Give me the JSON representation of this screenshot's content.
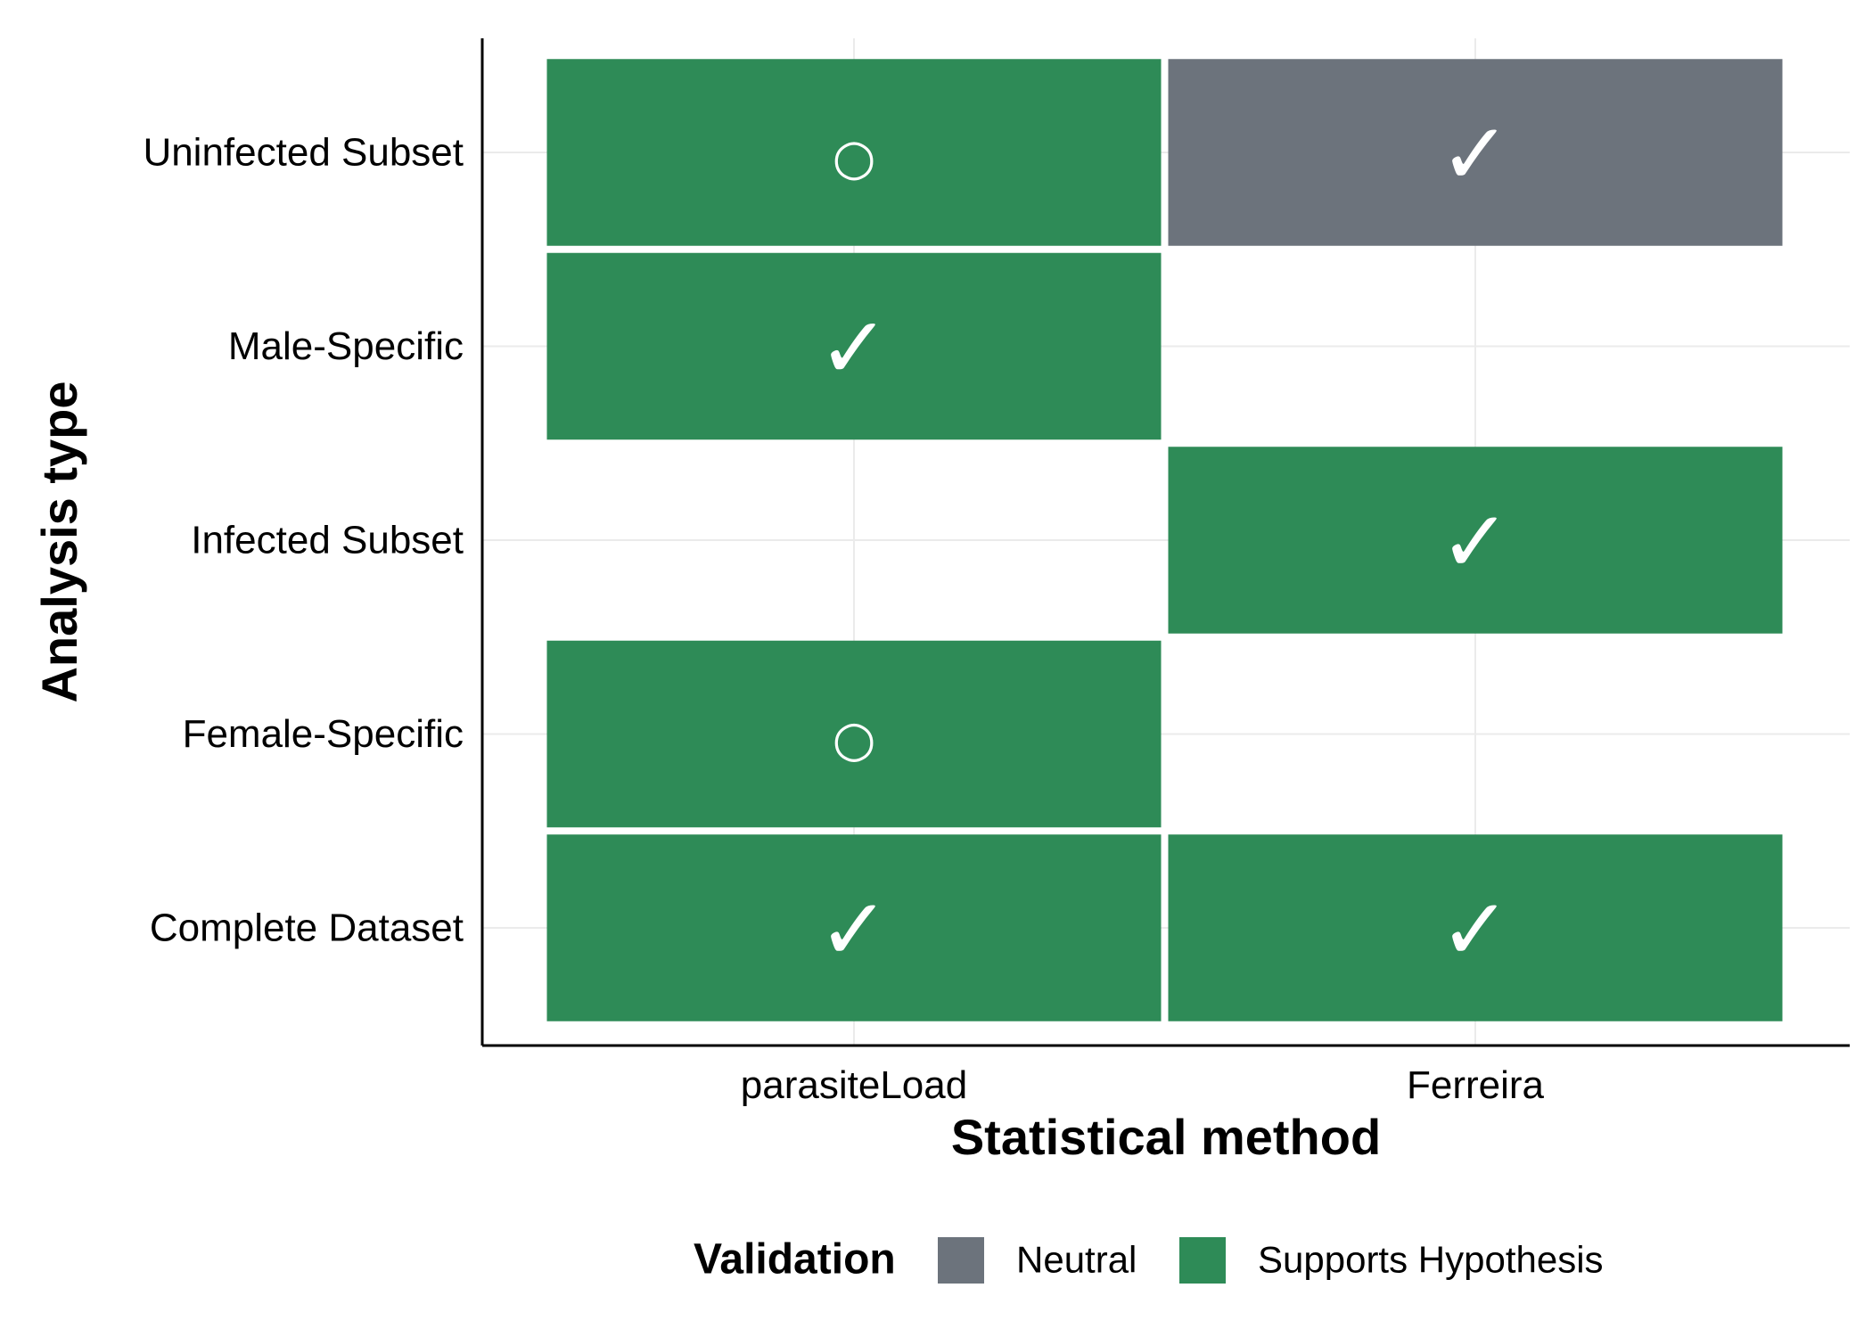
{
  "chart_data": {
    "type": "heatmap",
    "xlabel": "Statistical method",
    "ylabel": "Analysis type",
    "x_categories": [
      "parasiteLoad",
      "Ferreira"
    ],
    "y_categories": [
      "Complete Dataset",
      "Female-Specific",
      "Infected Subset",
      "Male-Specific",
      "Uninfected Subset"
    ],
    "cells": [
      {
        "x": "parasiteLoad",
        "y": "Uninfected Subset",
        "validation": "Supports Hypothesis",
        "symbol": "○"
      },
      {
        "x": "Ferreira",
        "y": "Uninfected Subset",
        "validation": "Neutral",
        "symbol": "✓"
      },
      {
        "x": "parasiteLoad",
        "y": "Male-Specific",
        "validation": "Supports Hypothesis",
        "symbol": "✓"
      },
      {
        "x": "Ferreira",
        "y": "Infected Subset",
        "validation": "Supports Hypothesis",
        "symbol": "✓"
      },
      {
        "x": "parasiteLoad",
        "y": "Female-Specific",
        "validation": "Supports Hypothesis",
        "symbol": "○"
      },
      {
        "x": "parasiteLoad",
        "y": "Complete Dataset",
        "validation": "Supports Hypothesis",
        "symbol": "✓"
      },
      {
        "x": "Ferreira",
        "y": "Complete Dataset",
        "validation": "Supports Hypothesis",
        "symbol": "✓"
      }
    ],
    "legend": {
      "title": "Validation",
      "position": "bottom",
      "entries": [
        {
          "label": "Neutral",
          "color": "#6c737c"
        },
        {
          "label": "Supports Hypothesis",
          "color": "#2e8b57"
        }
      ]
    },
    "grid": true
  }
}
